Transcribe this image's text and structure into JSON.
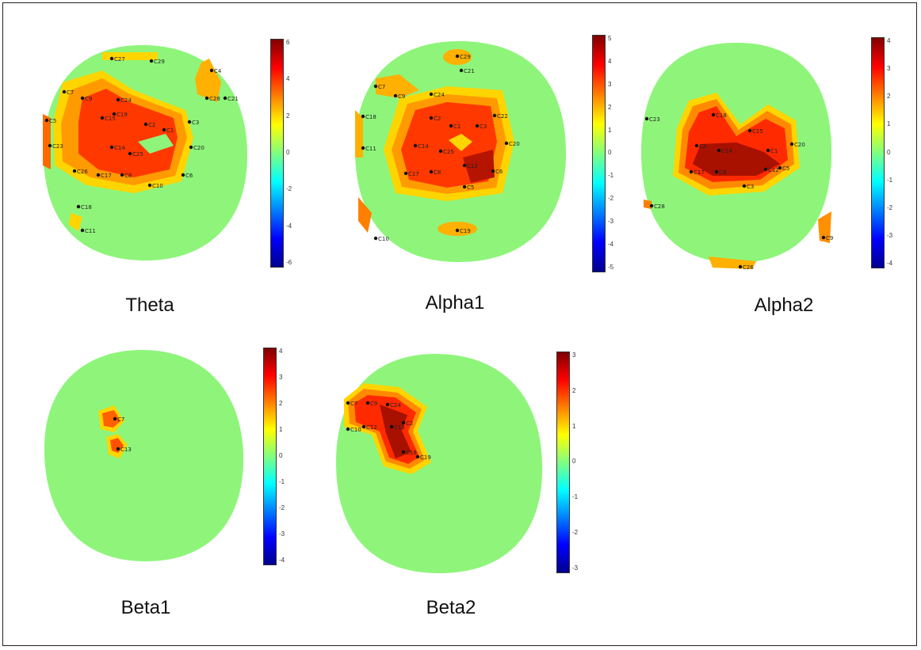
{
  "figure": {
    "colors": {
      "background": "#8ef57a",
      "jet": [
        "#00008f",
        "#0000ff",
        "#0080ff",
        "#00ffff",
        "#80ff80",
        "#ffff00",
        "#ff8000",
        "#ff0000",
        "#800000"
      ]
    },
    "panels": [
      {
        "id": "theta",
        "label": "Theta",
        "colorbar_ticks": [
          "6",
          "4",
          "2",
          "0",
          "-2",
          "-4",
          "-6"
        ],
        "electrodes": [
          "C27",
          "C29",
          "C7",
          "C9",
          "C24",
          "C15",
          "C19",
          "C14",
          "C25",
          "C2",
          "C1",
          "C3",
          "C20",
          "C26",
          "C17",
          "C8",
          "C10",
          "C6",
          "C5",
          "C23",
          "C18",
          "C11",
          "C4",
          "C28",
          "C21"
        ]
      },
      {
        "id": "alpha1",
        "label": "Alpha1",
        "colorbar_ticks": [
          "5",
          "4",
          "3",
          "2",
          "1",
          "0",
          "-1",
          "-2",
          "-3",
          "-4",
          "-5"
        ],
        "electrodes": [
          "C29",
          "C21",
          "C7",
          "C9",
          "C24",
          "C2",
          "C1",
          "C3",
          "C22",
          "C14",
          "C25",
          "C20",
          "C17",
          "C8",
          "C12",
          "C6",
          "C5",
          "C19",
          "C10",
          "C18",
          "C11"
        ]
      },
      {
        "id": "alpha2",
        "label": "Alpha2",
        "colorbar_ticks": [
          "4",
          "3",
          "2",
          "1",
          "0",
          "-1",
          "-2",
          "-3",
          "-4"
        ],
        "electrodes": [
          "C18",
          "C23",
          "C2",
          "C14",
          "C15",
          "C1",
          "C20",
          "C17",
          "C8",
          "C12",
          "C3",
          "C5",
          "C9",
          "C26",
          "C28"
        ]
      },
      {
        "id": "beta1",
        "label": "Beta1",
        "colorbar_ticks": [
          "4",
          "3",
          "2",
          "1",
          "0",
          "-1",
          "-2",
          "-3",
          "-4"
        ],
        "electrodes": [
          "C7",
          "C13"
        ]
      },
      {
        "id": "beta2",
        "label": "Beta2",
        "colorbar_ticks": [
          "3",
          "2",
          "1",
          "0",
          "-1",
          "-2",
          "-3"
        ],
        "electrodes": [
          "C7",
          "C9",
          "C24",
          "C12",
          "C13",
          "C2",
          "C10",
          "C18",
          "C19"
        ]
      }
    ]
  }
}
